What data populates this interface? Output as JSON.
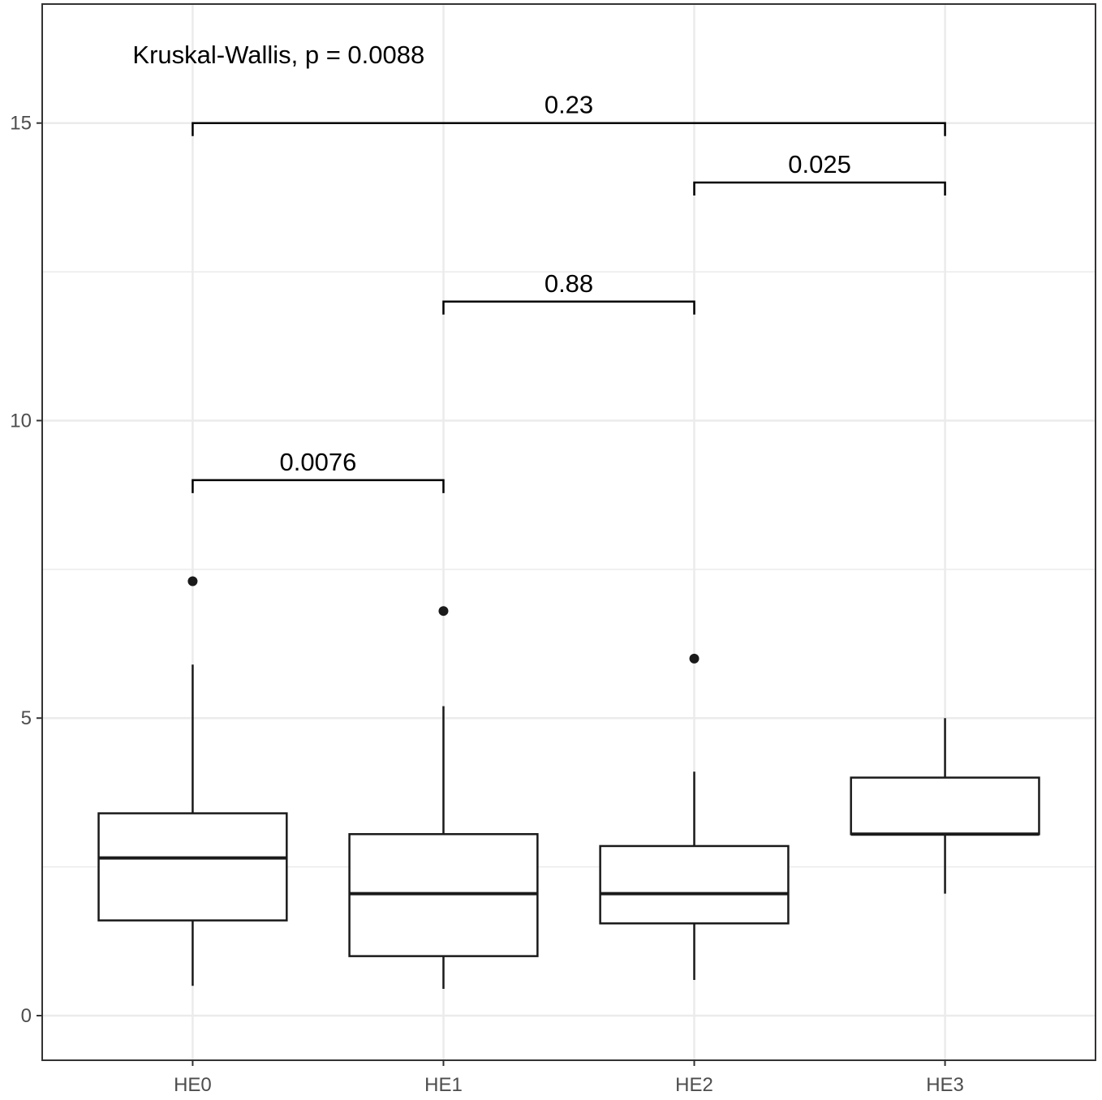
{
  "chart_data": {
    "type": "box",
    "title": "",
    "xlabel": "",
    "ylabel": "",
    "categories": [
      "HE0",
      "HE1",
      "HE2",
      "HE3"
    ],
    "ylim": [
      -0.75,
      17
    ],
    "yticks": [
      0,
      5,
      10,
      15
    ],
    "ytick_labels": [
      "0",
      "5",
      "10",
      "15"
    ],
    "grid": true,
    "legend": "none",
    "boxes": [
      {
        "category": "HE0",
        "whisker_low": 0.5,
        "q1": 1.6,
        "median": 2.65,
        "q3": 3.4,
        "whisker_high": 5.9,
        "outliers": [
          7.3
        ]
      },
      {
        "category": "HE1",
        "whisker_low": 0.45,
        "q1": 1.0,
        "median": 2.05,
        "q3": 3.05,
        "whisker_high": 5.2,
        "outliers": [
          6.8
        ]
      },
      {
        "category": "HE2",
        "whisker_low": 0.6,
        "q1": 1.55,
        "median": 2.05,
        "q3": 2.85,
        "whisker_high": 4.1,
        "outliers": [
          6.0
        ]
      },
      {
        "category": "HE3",
        "whisker_low": 2.05,
        "q1": 3.05,
        "median": 3.05,
        "q3": 4.0,
        "whisker_high": 5.0,
        "outliers": []
      }
    ],
    "overall_test": {
      "text": "Kruskal-Wallis, p = 0.0088"
    },
    "comparisons": [
      {
        "from": "HE0",
        "to": "HE1",
        "y": 9.0,
        "label": "0.0076"
      },
      {
        "from": "HE1",
        "to": "HE2",
        "y": 12.0,
        "label": "0.88"
      },
      {
        "from": "HE2",
        "to": "HE3",
        "y": 14.0,
        "label": "0.025"
      },
      {
        "from": "HE0",
        "to": "HE3",
        "y": 15.0,
        "label": "0.23"
      }
    ]
  },
  "colors": {
    "background": "#ffffff",
    "grid": "#ebebeb",
    "axis": "#333333",
    "box_line": "#1a1a1a",
    "outlier": "#1a1a1a",
    "tick_text": "#4d4d4d"
  }
}
